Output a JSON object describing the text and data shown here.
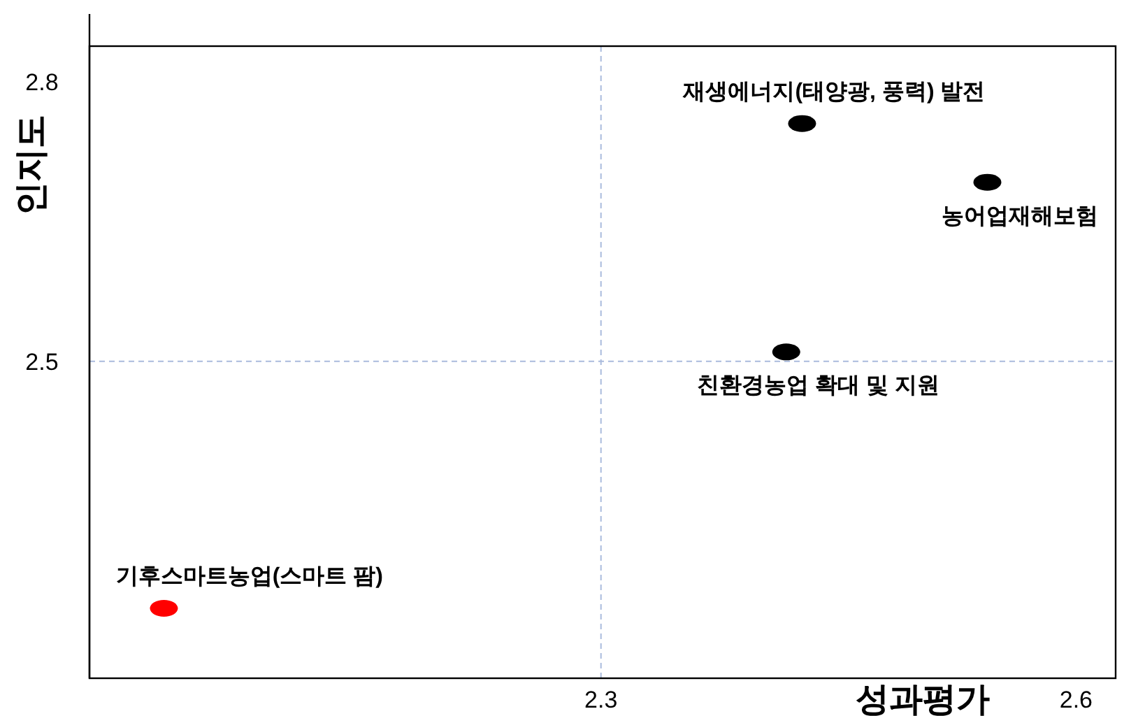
{
  "chart_data": {
    "type": "scatter",
    "xlabel": "성과평가",
    "ylabel": "인지도",
    "x": [
      2.024,
      2.427,
      2.544,
      2.417
    ],
    "values": [
      2.235,
      2.755,
      2.692,
      2.51
    ],
    "colors": [
      "#ff0000",
      "#000000",
      "#000000",
      "#000000"
    ],
    "marker": "circle",
    "grid": false,
    "xlim": [
      1.977,
      2.625
    ],
    "xticks": [
      2.3,
      2.6
    ],
    "ylim": [
      2.16,
      2.838
    ],
    "yticks": [
      2.5,
      2.8
    ],
    "ref_lines": [
      {
        "axis": "x",
        "value": 2.3,
        "color": "#aabbdd",
        "line_style": "dashed"
      },
      {
        "axis": "y",
        "value": 2.5,
        "color": "#aabbdd",
        "line_style": "dashed"
      }
    ],
    "annotations": [
      {
        "text": "기후스마트농업(스마트 팜)",
        "x": 2.024,
        "y": 2.235
      },
      {
        "text": "재생에너지(태양광, 풍력) 발전",
        "x": 2.427,
        "y": 2.755
      },
      {
        "text": "농어업재해보험",
        "x": 2.544,
        "y": 2.692
      },
      {
        "text": "친환경농업 확대 및 지원",
        "x": 2.417,
        "y": 2.51
      }
    ]
  }
}
